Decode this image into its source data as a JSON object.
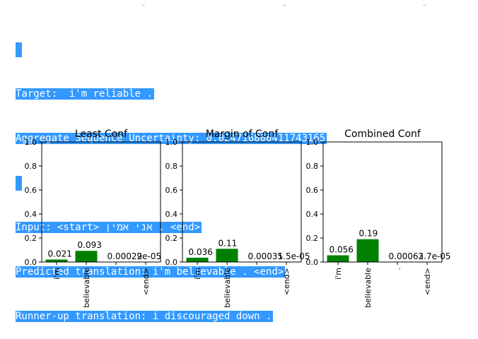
{
  "output": {
    "target": "Target:  i'm reliable .",
    "aggregate": "Aggregate Sequence Uncertainty: 0.024716806411743165",
    "input": "Input: <start> אני אמין . <end>",
    "predicted": "Predicted translation: i'm believable . <end>",
    "runner_up": "Runner-up translation: i discouraged down ."
  },
  "colors": {
    "bar": "#008000",
    "highlight": "#3399ff"
  },
  "chart_data": [
    {
      "type": "bar",
      "title": "Least Conf",
      "categories": [
        "i'm",
        "believable",
        ".",
        "<end>"
      ],
      "values": [
        0.021,
        0.093,
        0.00029,
        2e-05
      ],
      "labels": [
        "0.021",
        "0.093",
        "0.00029",
        "2e-05"
      ],
      "ylim": [
        0,
        1
      ],
      "yticks": [
        "0.0",
        "0.2",
        "0.4",
        "0.6",
        "0.8",
        "1.0"
      ],
      "grid": false
    },
    {
      "type": "bar",
      "title": "Margin of Conf",
      "categories": [
        "i'm",
        "believable",
        ".",
        "<end>"
      ],
      "values": [
        0.036,
        0.11,
        0.00031,
        5.5e-05
      ],
      "labels": [
        "0.036",
        "0.11",
        "0.00031",
        "5.5e-05"
      ],
      "ylim": [
        0,
        1
      ],
      "yticks": [
        "0.0",
        "0.2",
        "0.4",
        "0.6",
        "0.8",
        "1.0"
      ],
      "grid": false
    },
    {
      "type": "bar",
      "title": "Combined Conf",
      "categories": [
        "i'm",
        "believable",
        ".",
        "<end>"
      ],
      "values": [
        0.056,
        0.19,
        0.00062,
        3.7e-05
      ],
      "labels": [
        "0.056",
        "0.19",
        "0.00062",
        "3.7e-05"
      ],
      "ylim": [
        0,
        1
      ],
      "yticks": [
        "0.0",
        "0.2",
        "0.4",
        "0.6",
        "0.8",
        "1.0"
      ],
      "grid": false
    }
  ]
}
